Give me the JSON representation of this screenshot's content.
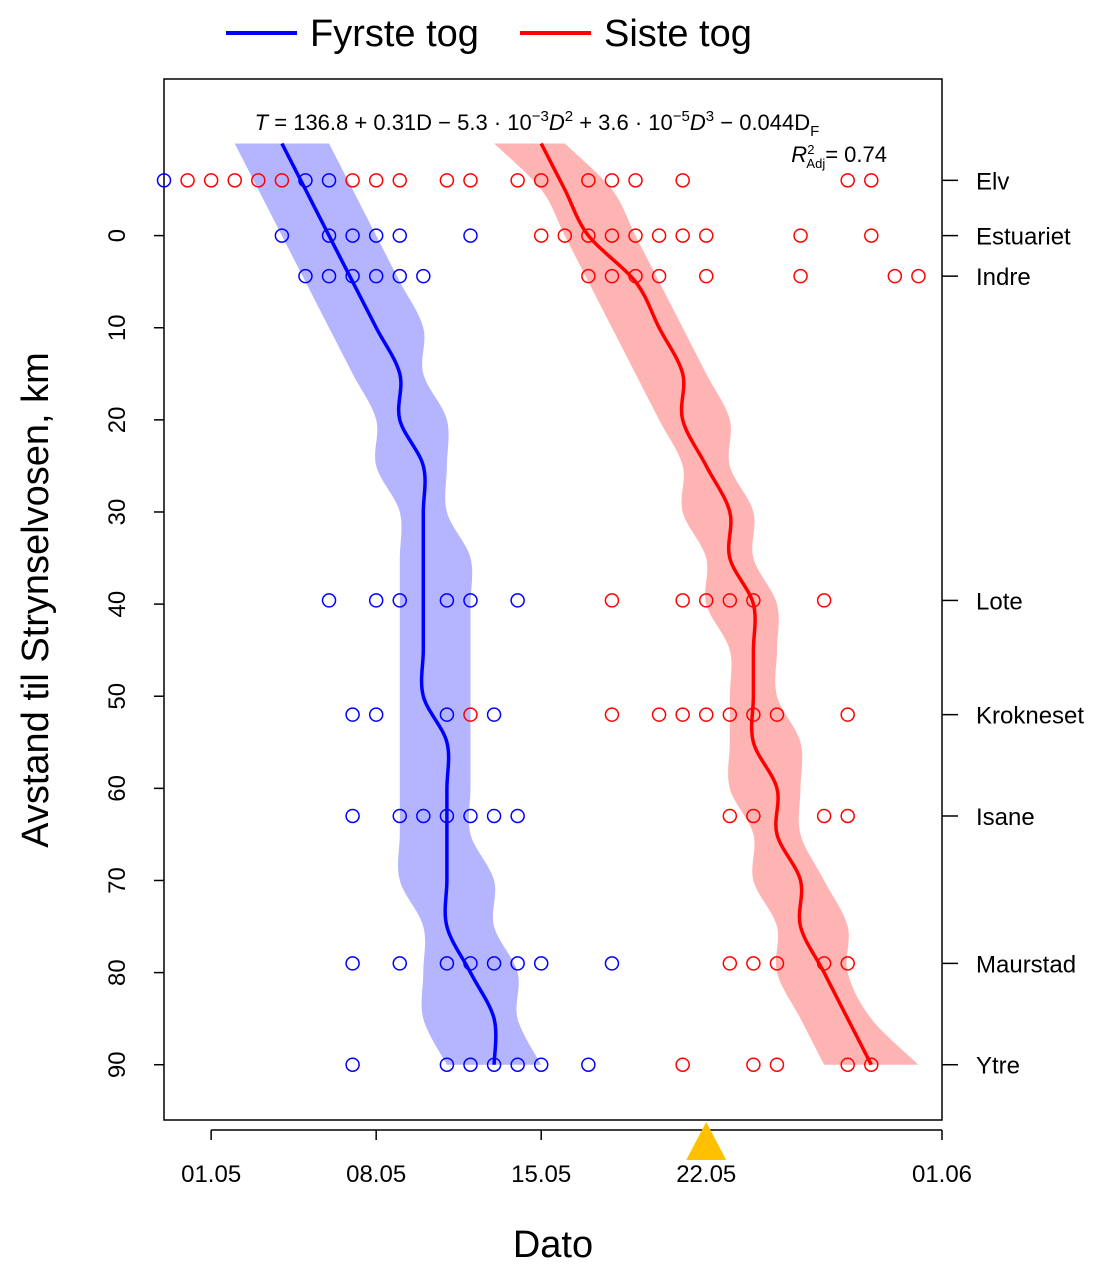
{
  "chart_data": {
    "type": "scatter",
    "title": "",
    "xlabel": "Dato",
    "ylabel": "Avstand til Strynselvosen, km",
    "x_axis": {
      "type": "date",
      "range": [
        "29.04",
        "01.06"
      ],
      "tick_labels": [
        "01.05",
        "08.05",
        "15.05",
        "22.05",
        "01.06"
      ]
    },
    "y_axis": {
      "inverted": true,
      "range": [
        -17,
        96
      ],
      "tick_values": [
        0,
        10,
        20,
        30,
        40,
        50,
        60,
        70,
        80,
        90
      ]
    },
    "legend": {
      "placement": "top",
      "entries": [
        {
          "label": "Fyrste tog",
          "color": "#0000ff"
        },
        {
          "label": "Siste tog",
          "color": "#ff0000"
        }
      ]
    },
    "annotation": {
      "equation": {
        "lhs": "T",
        "constant": "136.8",
        "linear": "0.31D",
        "quad_coef": "5.3 · 10",
        "quad_exp": "−3",
        "quad_var": "D",
        "quad_pow": "2",
        "cubic_coef": "3.6 · 10",
        "cubic_exp": "−5",
        "cubic_var": "D",
        "cubic_pow": "3",
        "fjord_coef": "0.044D",
        "fjord_sub": "F"
      },
      "r2": {
        "symbol": "R",
        "sup": "2",
        "sub": "Adj",
        "value": "= 0.74"
      }
    },
    "sites": [
      {
        "name": "Elv",
        "distance": -6
      },
      {
        "name": "Estuariet",
        "distance": 0
      },
      {
        "name": "Indre",
        "distance": 4.4
      },
      {
        "name": "Lote",
        "distance": 39.6
      },
      {
        "name": "Krokneset",
        "distance": 52
      },
      {
        "name": "Isane",
        "distance": 63
      },
      {
        "name": "Maurstad",
        "distance": 79
      },
      {
        "name": "Ytre",
        "distance": 90
      }
    ],
    "marker": {
      "date": "22.05",
      "color": "#ffc000",
      "shape": "triangle"
    },
    "series": [
      {
        "name": "Fyrste tog",
        "color": "#0000ff",
        "band_color": "#b0b0ff",
        "fit": [
          {
            "y": -10,
            "x": "04.05",
            "lo": "02.05",
            "hi": "06.05"
          },
          {
            "y": -5,
            "x": "05.05",
            "lo": "03.05",
            "hi": "07.05"
          },
          {
            "y": 0,
            "x": "06.05",
            "lo": "04.05",
            "hi": "08.05"
          },
          {
            "y": 5,
            "x": "07.05",
            "lo": "05.05",
            "hi": "09.05"
          },
          {
            "y": 10,
            "x": "08.05",
            "lo": "06.05",
            "hi": "10.05"
          },
          {
            "y": 15,
            "x": "09.05",
            "lo": "07.05",
            "hi": "10.05"
          },
          {
            "y": 20,
            "x": "09.05",
            "lo": "08.05",
            "hi": "11.05"
          },
          {
            "y": 25,
            "x": "10.05",
            "lo": "08.05",
            "hi": "11.05"
          },
          {
            "y": 30,
            "x": "10.05",
            "lo": "09.05",
            "hi": "11.05"
          },
          {
            "y": 35,
            "x": "10.05",
            "lo": "09.05",
            "hi": "12.05"
          },
          {
            "y": 40,
            "x": "10.05",
            "lo": "09.05",
            "hi": "12.05"
          },
          {
            "y": 45,
            "x": "10.05",
            "lo": "09.05",
            "hi": "12.05"
          },
          {
            "y": 50,
            "x": "10.05",
            "lo": "09.05",
            "hi": "12.05"
          },
          {
            "y": 55,
            "x": "11.05",
            "lo": "09.05",
            "hi": "12.05"
          },
          {
            "y": 60,
            "x": "11.05",
            "lo": "09.05",
            "hi": "12.05"
          },
          {
            "y": 65,
            "x": "11.05",
            "lo": "09.05",
            "hi": "12.05"
          },
          {
            "y": 70,
            "x": "11.05",
            "lo": "09.05",
            "hi": "13.05"
          },
          {
            "y": 75,
            "x": "11.05",
            "lo": "10.05",
            "hi": "13.05"
          },
          {
            "y": 80,
            "x": "12.05",
            "lo": "10.05",
            "hi": "14.05"
          },
          {
            "y": 85,
            "x": "13.05",
            "lo": "10.05",
            "hi": "14.05"
          },
          {
            "y": 90,
            "x": "13.05",
            "lo": "11.05",
            "hi": "15.05"
          }
        ],
        "points": [
          {
            "x": "29.04",
            "y": -6
          },
          {
            "x": "05.05",
            "y": -6
          },
          {
            "x": "06.05",
            "y": -6
          },
          {
            "x": "04.05",
            "y": 0
          },
          {
            "x": "06.05",
            "y": 0
          },
          {
            "x": "07.05",
            "y": 0
          },
          {
            "x": "08.05",
            "y": 0
          },
          {
            "x": "09.05",
            "y": 0
          },
          {
            "x": "12.05",
            "y": 0
          },
          {
            "x": "05.05",
            "y": 4.4
          },
          {
            "x": "06.05",
            "y": 4.4
          },
          {
            "x": "07.05",
            "y": 4.4
          },
          {
            "x": "08.05",
            "y": 4.4
          },
          {
            "x": "09.05",
            "y": 4.4
          },
          {
            "x": "10.05",
            "y": 4.4
          },
          {
            "x": "06.05",
            "y": 39.6
          },
          {
            "x": "08.05",
            "y": 39.6
          },
          {
            "x": "09.05",
            "y": 39.6
          },
          {
            "x": "11.05",
            "y": 39.6
          },
          {
            "x": "12.05",
            "y": 39.6
          },
          {
            "x": "14.05",
            "y": 39.6
          },
          {
            "x": "07.05",
            "y": 52
          },
          {
            "x": "08.05",
            "y": 52
          },
          {
            "x": "11.05",
            "y": 52
          },
          {
            "x": "13.05",
            "y": 52
          },
          {
            "x": "07.05",
            "y": 63
          },
          {
            "x": "09.05",
            "y": 63
          },
          {
            "x": "10.05",
            "y": 63
          },
          {
            "x": "11.05",
            "y": 63
          },
          {
            "x": "12.05",
            "y": 63
          },
          {
            "x": "13.05",
            "y": 63
          },
          {
            "x": "14.05",
            "y": 63
          },
          {
            "x": "07.05",
            "y": 79
          },
          {
            "x": "09.05",
            "y": 79
          },
          {
            "x": "11.05",
            "y": 79
          },
          {
            "x": "12.05",
            "y": 79
          },
          {
            "x": "13.05",
            "y": 79
          },
          {
            "x": "14.05",
            "y": 79
          },
          {
            "x": "15.05",
            "y": 79
          },
          {
            "x": "18.05",
            "y": 79
          },
          {
            "x": "07.05",
            "y": 90
          },
          {
            "x": "11.05",
            "y": 90
          },
          {
            "x": "12.05",
            "y": 90
          },
          {
            "x": "13.05",
            "y": 90
          },
          {
            "x": "14.05",
            "y": 90
          },
          {
            "x": "15.05",
            "y": 90
          },
          {
            "x": "17.05",
            "y": 90
          }
        ]
      },
      {
        "name": "Siste tog",
        "color": "#ff0000",
        "band_color": "#ffb0b0",
        "fit": [
          {
            "y": -10,
            "x": "15.05",
            "lo": "13.05",
            "hi": "16.05"
          },
          {
            "y": -5,
            "x": "16.05",
            "lo": "15.05",
            "hi": "18.05"
          },
          {
            "y": 0,
            "x": "17.05",
            "lo": "16.05",
            "hi": "19.05"
          },
          {
            "y": 5,
            "x": "19.05",
            "lo": "17.05",
            "hi": "20.05"
          },
          {
            "y": 10,
            "x": "20.05",
            "lo": "18.05",
            "hi": "21.05"
          },
          {
            "y": 15,
            "x": "21.05",
            "lo": "19.05",
            "hi": "22.05"
          },
          {
            "y": 20,
            "x": "21.05",
            "lo": "20.05",
            "hi": "23.05"
          },
          {
            "y": 25,
            "x": "22.05",
            "lo": "21.05",
            "hi": "23.05"
          },
          {
            "y": 30,
            "x": "23.05",
            "lo": "21.05",
            "hi": "24.05"
          },
          {
            "y": 35,
            "x": "23.05",
            "lo": "22.05",
            "hi": "24.05"
          },
          {
            "y": 40,
            "x": "24.05",
            "lo": "22.05",
            "hi": "25.05"
          },
          {
            "y": 45,
            "x": "24.05",
            "lo": "23.05",
            "hi": "25.05"
          },
          {
            "y": 50,
            "x": "24.05",
            "lo": "23.05",
            "hi": "25.05"
          },
          {
            "y": 55,
            "x": "24.05",
            "lo": "23.05",
            "hi": "26.05"
          },
          {
            "y": 60,
            "x": "25.05",
            "lo": "23.05",
            "hi": "26.05"
          },
          {
            "y": 65,
            "x": "25.05",
            "lo": "24.05",
            "hi": "26.05"
          },
          {
            "y": 70,
            "x": "26.05",
            "lo": "24.05",
            "hi": "27.05"
          },
          {
            "y": 75,
            "x": "26.05",
            "lo": "25.05",
            "hi": "28.05"
          },
          {
            "y": 80,
            "x": "27.05",
            "lo": "25.05",
            "hi": "28.05"
          },
          {
            "y": 85,
            "x": "28.05",
            "lo": "26.05",
            "hi": "29.05"
          },
          {
            "y": 90,
            "x": "29.05",
            "lo": "27.05",
            "hi": "31.05"
          }
        ],
        "points": [
          {
            "x": "30.04",
            "y": -6
          },
          {
            "x": "01.05",
            "y": -6
          },
          {
            "x": "02.05",
            "y": -6
          },
          {
            "x": "03.05",
            "y": -6
          },
          {
            "x": "04.05",
            "y": -6
          },
          {
            "x": "07.05",
            "y": -6
          },
          {
            "x": "08.05",
            "y": -6
          },
          {
            "x": "09.05",
            "y": -6
          },
          {
            "x": "11.05",
            "y": -6
          },
          {
            "x": "12.05",
            "y": -6
          },
          {
            "x": "14.05",
            "y": -6
          },
          {
            "x": "15.05",
            "y": -6
          },
          {
            "x": "17.05",
            "y": -6
          },
          {
            "x": "18.05",
            "y": -6
          },
          {
            "x": "19.05",
            "y": -6
          },
          {
            "x": "21.05",
            "y": -6
          },
          {
            "x": "28.05",
            "y": -6
          },
          {
            "x": "29.05",
            "y": -6
          },
          {
            "x": "15.05",
            "y": 0
          },
          {
            "x": "16.05",
            "y": 0
          },
          {
            "x": "17.05",
            "y": 0
          },
          {
            "x": "18.05",
            "y": 0
          },
          {
            "x": "19.05",
            "y": 0
          },
          {
            "x": "20.05",
            "y": 0
          },
          {
            "x": "21.05",
            "y": 0
          },
          {
            "x": "22.05",
            "y": 0
          },
          {
            "x": "26.05",
            "y": 0
          },
          {
            "x": "29.05",
            "y": 0
          },
          {
            "x": "17.05",
            "y": 4.4
          },
          {
            "x": "18.05",
            "y": 4.4
          },
          {
            "x": "19.05",
            "y": 4.4
          },
          {
            "x": "20.05",
            "y": 4.4
          },
          {
            "x": "22.05",
            "y": 4.4
          },
          {
            "x": "26.05",
            "y": 4.4
          },
          {
            "x": "30.05",
            "y": 4.4
          },
          {
            "x": "31.05",
            "y": 4.4
          },
          {
            "x": "18.05",
            "y": 39.6
          },
          {
            "x": "21.05",
            "y": 39.6
          },
          {
            "x": "22.05",
            "y": 39.6
          },
          {
            "x": "23.05",
            "y": 39.6
          },
          {
            "x": "24.05",
            "y": 39.6
          },
          {
            "x": "27.05",
            "y": 39.6
          },
          {
            "x": "12.05",
            "y": 52
          },
          {
            "x": "18.05",
            "y": 52
          },
          {
            "x": "20.05",
            "y": 52
          },
          {
            "x": "21.05",
            "y": 52
          },
          {
            "x": "22.05",
            "y": 52
          },
          {
            "x": "23.05",
            "y": 52
          },
          {
            "x": "24.05",
            "y": 52
          },
          {
            "x": "25.05",
            "y": 52
          },
          {
            "x": "28.05",
            "y": 52
          },
          {
            "x": "23.05",
            "y": 63
          },
          {
            "x": "24.05",
            "y": 63
          },
          {
            "x": "27.05",
            "y": 63
          },
          {
            "x": "28.05",
            "y": 63
          },
          {
            "x": "23.05",
            "y": 79
          },
          {
            "x": "24.05",
            "y": 79
          },
          {
            "x": "25.05",
            "y": 79
          },
          {
            "x": "27.05",
            "y": 79
          },
          {
            "x": "28.05",
            "y": 79
          },
          {
            "x": "21.05",
            "y": 90
          },
          {
            "x": "24.05",
            "y": 90
          },
          {
            "x": "25.05",
            "y": 90
          },
          {
            "x": "28.05",
            "y": 90
          },
          {
            "x": "29.05",
            "y": 90
          }
        ]
      }
    ]
  }
}
